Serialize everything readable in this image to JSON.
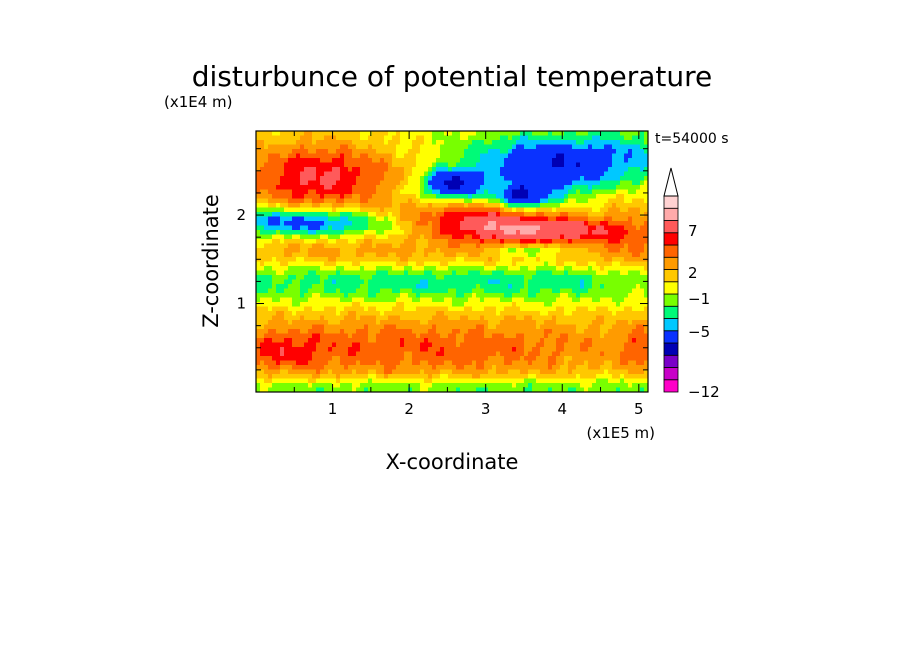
{
  "chart_data": {
    "type": "heatmap",
    "title": "disturbunce of potential temperature",
    "time_label": "t=54000 s",
    "xlabel": "X-coordinate",
    "ylabel": "Z-coordinate",
    "x_unit": "(x1E5 m)",
    "y_unit": "(x1E4 m)",
    "xlim": [
      0,
      5.12
    ],
    "ylim": [
      0,
      2.95
    ],
    "x_ticks": [
      "1",
      "2",
      "3",
      "4",
      "5"
    ],
    "y_ticks": [
      "1",
      "2"
    ],
    "colorbar": {
      "labels": [
        "7",
        "2",
        "−1",
        "−5",
        "−12"
      ],
      "colors": [
        "#FF00C8",
        "#C800C8",
        "#7A00C8",
        "#0000B4",
        "#0A32FF",
        "#00C8FF",
        "#00FA78",
        "#78FF00",
        "#FFFF00",
        "#FFC800",
        "#FF9B00",
        "#FF6400",
        "#FF0000",
        "#FF5A5A",
        "#FFAAAA",
        "#FFD2D2"
      ],
      "extend_max": true
    },
    "field_features": [
      {
        "x": 2.0,
        "z": 0.5,
        "sx": 2.6,
        "sz": 0.28,
        "v": 3.2
      },
      {
        "x": 0.4,
        "z": 0.45,
        "sx": 0.35,
        "sz": 0.15,
        "v": 1.6
      },
      {
        "x": 5.05,
        "z": 0.5,
        "sx": 0.2,
        "sz": 0.2,
        "v": 1.6
      },
      {
        "x": 2.6,
        "z": 1.25,
        "sx": 3.5,
        "sz": 0.16,
        "v": -2.4
      },
      {
        "x": 2.4,
        "z": 1.58,
        "sx": 3.0,
        "sz": 0.15,
        "v": 2.0
      },
      {
        "x": 0.75,
        "z": 2.4,
        "sx": 0.65,
        "sz": 0.32,
        "v": 4.2
      },
      {
        "x": 0.7,
        "z": 1.92,
        "sx": 0.85,
        "sz": 0.12,
        "v": -5.5
      },
      {
        "x": 3.85,
        "z": 2.55,
        "sx": 0.9,
        "sz": 0.22,
        "v": -7.0
      },
      {
        "x": 2.55,
        "z": 2.35,
        "sx": 0.3,
        "sz": 0.13,
        "v": -6.0
      },
      {
        "x": 3.0,
        "z": 2.5,
        "sx": 1.4,
        "sz": 0.18,
        "v": 2.2
      },
      {
        "x": 2.75,
        "z": 2.0,
        "sx": 0.85,
        "sz": 0.13,
        "v": 4.0
      },
      {
        "x": 3.65,
        "z": 1.83,
        "sx": 0.8,
        "sz": 0.1,
        "v": 5.5
      },
      {
        "x": 3.5,
        "z": 2.2,
        "sx": 0.25,
        "sz": 0.1,
        "v": -5.5
      },
      {
        "x": 3.6,
        "z": 1.6,
        "sx": 0.35,
        "sz": 0.05,
        "v": -3.0
      },
      {
        "x": 4.9,
        "z": 2.0,
        "sx": 0.35,
        "sz": 0.6,
        "v": 1.5
      },
      {
        "x": 4.9,
        "z": 2.7,
        "sx": 0.4,
        "sz": 0.25,
        "v": -1.5
      },
      {
        "x": 2.5,
        "z": 0.05,
        "sx": 3.5,
        "sz": 0.08,
        "v": -2.0
      }
    ]
  }
}
